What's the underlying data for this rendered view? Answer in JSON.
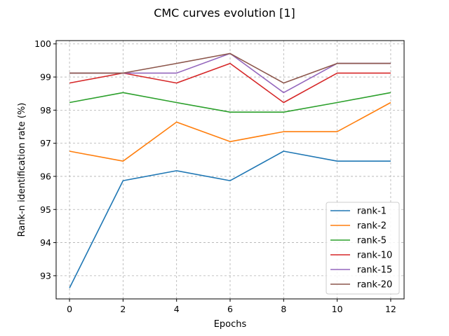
{
  "chart_data": {
    "type": "line",
    "title": "CMC curves evolution [1]",
    "xlabel": "Epochs",
    "ylabel": "Rank-n identification rate (%)",
    "x": [
      0,
      2,
      4,
      6,
      8,
      10,
      12
    ],
    "xlim": [
      -0.5,
      12.5
    ],
    "ylim": [
      92.3,
      100.1
    ],
    "xticks": [
      0,
      2,
      4,
      6,
      8,
      10,
      12
    ],
    "yticks": [
      93,
      94,
      95,
      96,
      97,
      98,
      99,
      100
    ],
    "grid": true,
    "legend_position": "lower-right",
    "series": [
      {
        "name": "rank-1",
        "color": "#1f77b4",
        "values": [
          92.63,
          95.87,
          96.17,
          95.87,
          96.76,
          96.46,
          96.46
        ]
      },
      {
        "name": "rank-2",
        "color": "#ff7f0e",
        "values": [
          96.76,
          96.46,
          97.64,
          97.05,
          97.35,
          97.35,
          98.23
        ]
      },
      {
        "name": "rank-5",
        "color": "#2ca02c",
        "values": [
          98.23,
          98.53,
          98.23,
          97.94,
          97.94,
          98.23,
          98.53
        ]
      },
      {
        "name": "rank-10",
        "color": "#d62728",
        "values": [
          98.82,
          99.12,
          98.82,
          99.41,
          98.23,
          99.12,
          99.12
        ]
      },
      {
        "name": "rank-15",
        "color": "#9467bd",
        "values": [
          99.12,
          99.12,
          99.12,
          99.71,
          98.53,
          99.41,
          99.41
        ]
      },
      {
        "name": "rank-20",
        "color": "#8c564b",
        "values": [
          99.12,
          99.12,
          99.41,
          99.71,
          98.82,
          99.41,
          99.41
        ]
      }
    ]
  }
}
